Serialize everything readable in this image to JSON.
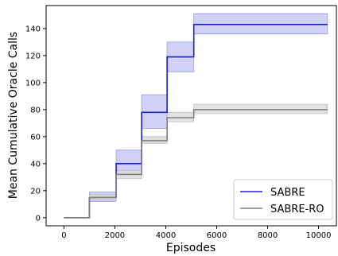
{
  "chart_data": {
    "type": "line",
    "xlabel": "Episodes",
    "ylabel": "Mean Cumulative Oracle Calls",
    "xlim": [
      -700,
      10700
    ],
    "ylim": [
      -6,
      157
    ],
    "xticks": [
      0,
      2000,
      4000,
      6000,
      8000,
      10000
    ],
    "yticks": [
      0,
      20,
      40,
      60,
      80,
      100,
      120,
      140
    ],
    "grid": false,
    "legend_position": "lower-right",
    "series": [
      {
        "name": "SABRE",
        "color": "#1f1fd6",
        "band_color": "#c9c9f6",
        "band_edge": "#9b9bef",
        "x": [
          0,
          1000,
          2050,
          3050,
          4050,
          5100,
          10350
        ],
        "y": [
          0,
          15,
          40,
          78,
          119,
          143,
          143
        ],
        "lower": [
          0,
          12,
          33,
          66,
          108,
          136,
          136
        ],
        "upper": [
          0,
          19,
          50,
          91,
          130,
          151,
          151
        ]
      },
      {
        "name": "SABRE-RO",
        "color": "#808080",
        "band_color": "#dcdcdc",
        "band_edge": "#bdbdbd",
        "x": [
          0,
          1000,
          2050,
          3050,
          4050,
          5100,
          10350
        ],
        "y": [
          0,
          15,
          32,
          57,
          74,
          80,
          80
        ],
        "lower": [
          0,
          13,
          29,
          55,
          71,
          77,
          77
        ],
        "upper": [
          0,
          17,
          35,
          60,
          78,
          84,
          84
        ]
      }
    ]
  }
}
